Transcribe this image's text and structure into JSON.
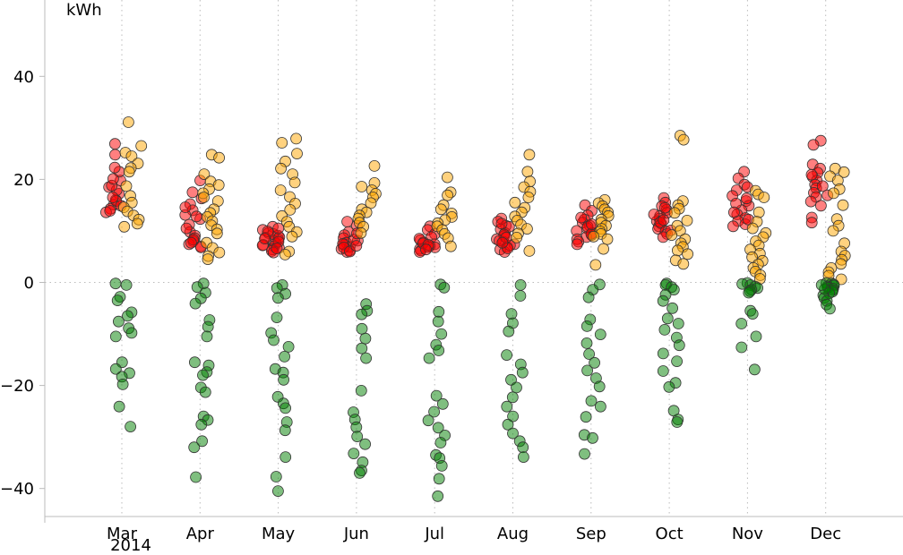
{
  "chart_data": {
    "type": "scatter",
    "title": "",
    "ylabel": "kWh",
    "xlabel": "",
    "year_label": "2014",
    "ylim": [
      -46,
      55
    ],
    "yticks": [
      40,
      20,
      0,
      -20,
      -40
    ],
    "ytick_labels": [
      "40",
      "20",
      "0",
      "−20",
      "−40"
    ],
    "months": [
      "Mar",
      "Apr",
      "May",
      "Jun",
      "Jul",
      "Aug",
      "Sep",
      "Oct",
      "Nov",
      "Dec"
    ],
    "series": [
      {
        "name": "red",
        "color": "#ff0000",
        "values": [
          [
            18.5,
            17.2,
            16.0,
            15.1,
            14.3,
            19.8,
            21.5,
            22.3,
            24.8,
            26.9,
            13.6,
            15.8,
            17.9,
            16.5,
            14.9,
            18.8,
            20.1,
            13.9
          ],
          [
            19.8,
            17.5,
            15.2,
            14.0,
            13.1,
            12.3,
            11.2,
            9.8,
            9.1,
            8.6,
            8.0,
            7.4,
            7.0,
            6.8,
            10.5,
            12.8,
            14.6,
            16.3,
            8.3,
            7.7
          ],
          [
            10.8,
            10.2,
            9.6,
            9.1,
            8.7,
            8.3,
            8.0,
            7.6,
            7.3,
            7.0,
            6.7,
            6.4,
            6.1,
            5.8,
            9.4,
            8.8,
            7.9,
            7.2,
            6.6,
            10.5,
            9.9,
            8.5
          ],
          [
            11.8,
            11.0,
            9.8,
            9.2,
            8.6,
            8.1,
            7.7,
            7.3,
            6.9,
            6.5,
            6.2,
            5.9,
            7.5,
            8.3,
            6.8,
            6.0,
            7.1,
            9.5
          ],
          [
            10.9,
            10.2,
            9.4,
            8.8,
            8.2,
            7.8,
            7.4,
            7.1,
            6.8,
            6.5,
            6.2,
            5.9,
            8.5,
            7.6,
            6.9,
            7.3,
            6.4
          ],
          [
            12.4,
            11.8,
            11.0,
            10.3,
            9.6,
            9.0,
            8.4,
            7.9,
            7.4,
            6.9,
            6.4,
            5.9,
            10.8,
            9.3,
            8.1,
            7.2,
            6.6,
            11.4,
            8.7,
            7.7
          ],
          [
            15.0,
            13.9,
            13.0,
            12.2,
            11.6,
            11.0,
            10.5,
            10.0,
            9.6,
            9.2,
            8.8,
            8.4,
            7.9,
            7.4,
            10.8,
            9.4,
            11.3,
            12.6
          ],
          [
            16.4,
            15.5,
            14.8,
            14.1,
            13.5,
            12.9,
            12.4,
            11.9,
            11.4,
            10.9,
            10.4,
            9.9,
            9.4,
            8.8,
            13.2,
            11.7,
            10.1,
            12.1,
            14.5
          ],
          [
            21.5,
            20.2,
            19.0,
            17.9,
            16.8,
            15.8,
            14.9,
            14.0,
            13.2,
            12.5,
            11.9,
            11.3,
            10.9,
            18.5,
            15.3,
            13.6,
            12.2,
            16.3
          ],
          [
            27.5,
            26.7,
            22.9,
            22.1,
            21.3,
            20.5,
            19.8,
            19.0,
            18.3,
            17.4,
            16.6,
            15.7,
            14.9,
            12.6,
            11.6,
            20.9,
            18.7,
            16.9
          ]
        ]
      },
      {
        "name": "orange",
        "color": "#ffa500",
        "values": [
          [
            31.1,
            26.5,
            25.2,
            24.5,
            23.1,
            22.2,
            21.5,
            18.7,
            16.8,
            15.5,
            14.6,
            13.8,
            13.0,
            12.2,
            11.4,
            10.8
          ],
          [
            24.8,
            24.2,
            21.0,
            19.6,
            18.9,
            18.1,
            17.3,
            16.5,
            15.8,
            14.2,
            13.5,
            12.7,
            11.9,
            11.1,
            10.3,
            9.5,
            7.7,
            6.7,
            5.8,
            5.1,
            4.5
          ],
          [
            27.9,
            27.1,
            25.0,
            23.5,
            22.1,
            21.0,
            19.4,
            17.9,
            16.6,
            15.3,
            14.1,
            12.9,
            11.8,
            10.8,
            9.8,
            8.9,
            6.0,
            5.4
          ],
          [
            22.6,
            19.3,
            18.6,
            17.9,
            17.2,
            16.5,
            15.4,
            14.2,
            13.6,
            13.0,
            12.4,
            11.6,
            10.8,
            9.6
          ],
          [
            20.4,
            17.5,
            16.9,
            15.0,
            14.2,
            13.4,
            12.7,
            12.1,
            11.5,
            10.9,
            10.2,
            9.4,
            8.6,
            7.0
          ],
          [
            24.8,
            21.5,
            19.6,
            18.5,
            17.6,
            16.5,
            15.5,
            14.5,
            13.6,
            12.8,
            12.0,
            11.2,
            10.4,
            9.5,
            8.7,
            6.1
          ],
          [
            16.0,
            15.4,
            14.8,
            14.2,
            13.6,
            12.9,
            12.2,
            11.6,
            11.0,
            10.4,
            9.9,
            9.4,
            8.9,
            8.4,
            6.5,
            3.4
          ],
          [
            28.5,
            27.7,
            15.8,
            15.0,
            14.3,
            13.5,
            12.0,
            11.0,
            10.0,
            9.2,
            8.4,
            7.6,
            6.9,
            6.2,
            5.5,
            4.3,
            3.6
          ],
          [
            17.8,
            17.1,
            16.5,
            13.6,
            11.8,
            10.5,
            9.6,
            8.8,
            8.0,
            7.2,
            6.4,
            5.6,
            4.9,
            4.2,
            3.5,
            2.8,
            2.1,
            1.4,
            0.7
          ],
          [
            22.1,
            21.4,
            20.6,
            19.8,
            18.1,
            17.3,
            15.0,
            12.3,
            11.0,
            10.0,
            7.6,
            6.0,
            5.2,
            4.4,
            3.6,
            2.8,
            2.0,
            1.3,
            0.6
          ]
        ]
      },
      {
        "name": "green",
        "color": "#008000",
        "values": [
          [
            -0.2,
            -0.5,
            -2.8,
            -3.5,
            -5.8,
            -6.5,
            -7.6,
            -8.9,
            -9.8,
            -10.5,
            -15.5,
            -16.8,
            -17.6,
            -18.3,
            -19.8,
            -24.1,
            -28.0
          ],
          [
            -0.2,
            -0.9,
            -2.0,
            -3.1,
            -4.1,
            -7.3,
            -8.6,
            -10.5,
            -15.5,
            -16.1,
            -17.4,
            -18.0,
            -20.4,
            -21.3,
            -26.0,
            -26.7,
            -27.6,
            -30.8,
            -32.0,
            -37.8
          ],
          [
            -0.5,
            -1.1,
            -2.2,
            -3.0,
            -6.8,
            -9.8,
            -11.2,
            -12.5,
            -14.4,
            -16.8,
            -17.5,
            -18.9,
            -22.2,
            -23.5,
            -24.4,
            -27.1,
            -28.7,
            -33.9,
            -37.7,
            -40.5
          ],
          [
            -4.2,
            -5.5,
            -6.2,
            -9.0,
            -10.9,
            -12.8,
            -14.7,
            -21.0,
            -25.2,
            -26.6,
            -28.1,
            -29.9,
            -31.4,
            -33.2,
            -34.9,
            -36.5,
            -37.0
          ],
          [
            -0.4,
            -1.0,
            -5.7,
            -7.6,
            -10.0,
            -12.1,
            -13.2,
            -14.7,
            -22.0,
            -23.6,
            -25.1,
            -26.8,
            -28.2,
            -29.7,
            -31.1,
            -33.5,
            -34.1,
            -35.6,
            -38.1,
            -41.5
          ],
          [
            -0.5,
            -2.6,
            -6.1,
            -7.9,
            -9.5,
            -14.1,
            -15.9,
            -17.5,
            -18.9,
            -20.4,
            -22.3,
            -24.1,
            -26.0,
            -27.6,
            -29.3,
            -30.8,
            -32.0,
            -33.9
          ],
          [
            -0.4,
            -1.4,
            -2.9,
            -7.2,
            -8.5,
            -10.1,
            -11.8,
            -13.9,
            -15.6,
            -17.1,
            -18.6,
            -20.2,
            -23.0,
            -24.1,
            -26.1,
            -29.6,
            -30.2,
            -33.3
          ],
          [
            -0.2,
            -0.5,
            -0.9,
            -1.4,
            -2.4,
            -3.6,
            -5.0,
            -7.0,
            -8.0,
            -9.2,
            -10.7,
            -12.2,
            -13.8,
            -15.3,
            -17.2,
            -19.5,
            -20.3,
            -24.9,
            -26.6,
            -27.1
          ],
          [
            -0.1,
            -0.3,
            -0.5,
            -0.8,
            -1.1,
            -1.4,
            -1.7,
            -2.0,
            -5.5,
            -6.1,
            -8.0,
            -10.5,
            -12.6,
            -16.9
          ],
          [
            -0.1,
            -0.2,
            -0.4,
            -0.6,
            -0.8,
            -1.0,
            -1.2,
            -1.5,
            -1.8,
            -2.1,
            -2.5,
            -3.0,
            -3.6,
            -4.3,
            -5.1,
            -1.3,
            -0.5
          ]
        ]
      }
    ]
  }
}
